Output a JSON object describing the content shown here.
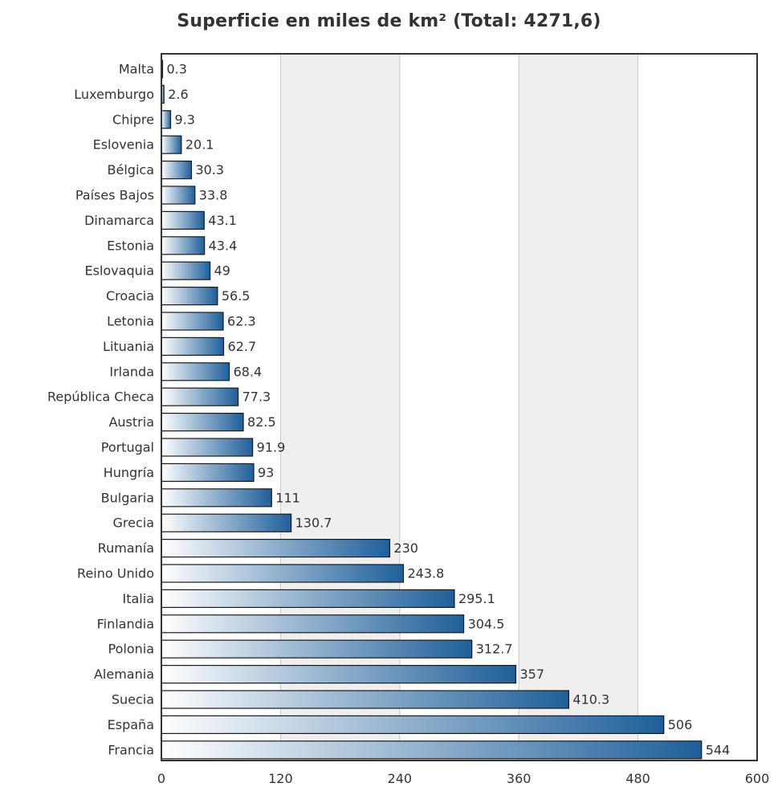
{
  "chart_data": {
    "type": "bar",
    "orientation": "horizontal",
    "title": "Superficie en miles de km² (Total: 4271,6)",
    "xlabel": "",
    "ylabel": "",
    "xlim": [
      0,
      600
    ],
    "x_ticks": [
      "0",
      "120",
      "240",
      "360",
      "480",
      "600"
    ],
    "grid": true,
    "categories": [
      "Malta",
      "Luxemburgo",
      "Chipre",
      "Eslovenia",
      "Bélgica",
      "Países Bajos",
      "Dinamarca",
      "Estonia",
      "Eslovaquia",
      "Croacia",
      "Letonia",
      "Lituania",
      "Irlanda",
      "República Checa",
      "Austria",
      "Portugal",
      "Hungría",
      "Bulgaria",
      "Grecia",
      "Rumanía",
      "Reino Unido",
      "Italia",
      "Finlandia",
      "Polonia",
      "Alemania",
      "Suecia",
      "España",
      "Francia"
    ],
    "values": [
      0.3,
      2.6,
      9.3,
      20.1,
      30.3,
      33.8,
      43.1,
      43.4,
      49,
      56.5,
      62.3,
      62.7,
      68.4,
      77.3,
      82.5,
      91.9,
      93,
      111,
      130.7,
      230,
      243.8,
      295.1,
      304.5,
      312.7,
      357,
      410.3,
      506,
      544
    ],
    "value_labels": [
      "0.3",
      "2.6",
      "9.3",
      "20.1",
      "30.3",
      "33.8",
      "43.1",
      "43.4",
      "49",
      "56.5",
      "62.3",
      "62.7",
      "68.4",
      "77.3",
      "82.5",
      "91.9",
      "93",
      "111",
      "130.7",
      "230",
      "243.8",
      "295.1",
      "304.5",
      "312.7",
      "357",
      "410.3",
      "506",
      "544"
    ],
    "colors": {
      "bar_dark": "#1f5f9a",
      "bar_light": "#ffffff",
      "bar_stroke": "#1a1a1a",
      "band": "#efefef",
      "grid": "#c8c8c8",
      "frame": "#333333"
    }
  }
}
